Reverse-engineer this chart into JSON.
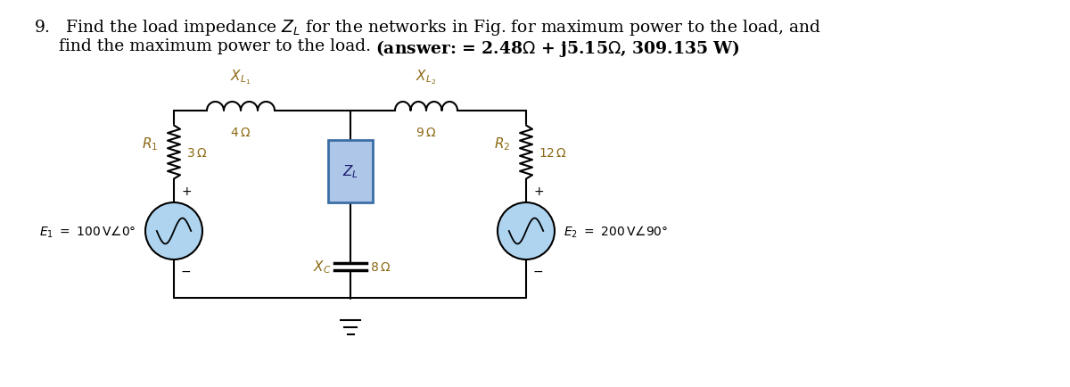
{
  "bg_color": "#ffffff",
  "zl_fill": "#aec6e8",
  "zl_edge": "#3a6ea5",
  "source_fill": "#aed4f0",
  "source_edge": "#888888",
  "wire_color": "#000000",
  "label_color": "#8B6914",
  "text_color": "#000000",
  "title1": "9.   Find the load impedance Z",
  "title1_sub": "L",
  "title1_end": " for the networks in Fig. for maximum power to the load, and",
  "title2_plain": "find the maximum power to the load. ",
  "title2_bold": "(answer: = 2.48Ω + j5.15Ω, 309.135 W)",
  "lw": 1.5,
  "fs_title": 13.5,
  "fs_label": 11,
  "fs_small": 10
}
